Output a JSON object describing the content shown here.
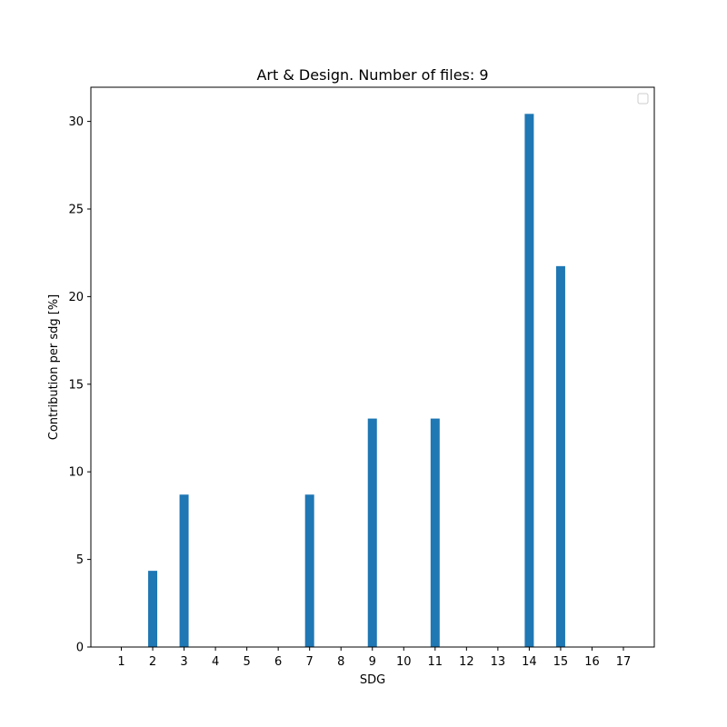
{
  "chart_data": {
    "type": "bar",
    "title": "Art & Design. Number of files: 9",
    "xlabel": "SDG",
    "ylabel": "Contribution per sdg [%]",
    "categories": [
      "1",
      "2",
      "3",
      "4",
      "5",
      "6",
      "7",
      "8",
      "9",
      "10",
      "11",
      "12",
      "13",
      "14",
      "15",
      "16",
      "17"
    ],
    "values": [
      0,
      4.35,
      8.7,
      0,
      0,
      0,
      8.7,
      0,
      13.04,
      0,
      13.04,
      0,
      0,
      30.43,
      21.74,
      0,
      0
    ],
    "yticks": [
      0,
      5,
      10,
      15,
      20,
      25,
      30
    ],
    "ylim": [
      0,
      31.95
    ],
    "bar_color": "#1f77b4",
    "legend": "top-right",
    "grid": false
  }
}
